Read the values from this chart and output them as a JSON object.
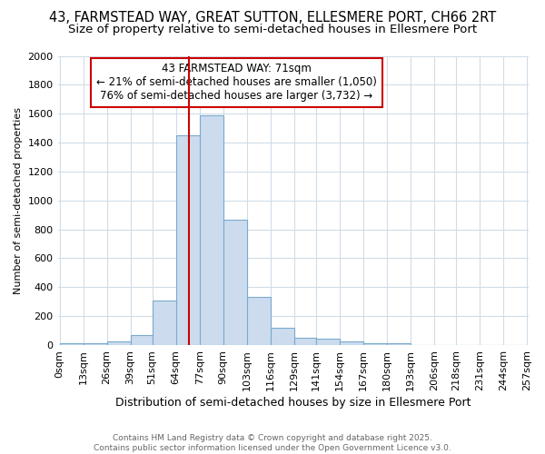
{
  "title1": "43, FARMSTEAD WAY, GREAT SUTTON, ELLESMERE PORT, CH66 2RT",
  "title2": "Size of property relative to semi-detached houses in Ellesmere Port",
  "xlabel": "Distribution of semi-detached houses by size in Ellesmere Port",
  "ylabel": "Number of semi-detached properties",
  "footnote": "Contains HM Land Registry data © Crown copyright and database right 2025.\nContains public sector information licensed under the Open Government Licence v3.0.",
  "bin_edges": [
    0,
    13,
    26,
    39,
    51,
    64,
    77,
    90,
    103,
    116,
    129,
    141,
    154,
    167,
    180,
    193,
    206,
    218,
    231,
    244,
    257
  ],
  "bin_labels": [
    "0sqm",
    "13sqm",
    "26sqm",
    "39sqm",
    "51sqm",
    "64sqm",
    "77sqm",
    "90sqm",
    "103sqm",
    "116sqm",
    "129sqm",
    "141sqm",
    "154sqm",
    "167sqm",
    "180sqm",
    "193sqm",
    "206sqm",
    "218sqm",
    "231sqm",
    "244sqm",
    "257sqm"
  ],
  "counts": [
    10,
    10,
    25,
    70,
    310,
    1450,
    1590,
    865,
    335,
    120,
    50,
    45,
    25,
    15,
    10,
    3,
    2,
    1,
    1,
    0
  ],
  "bar_color": "#ccdcee",
  "bar_edgecolor": "#7aaace",
  "property_size": 71,
  "vline_color": "#cc0000",
  "annotation_title": "43 FARMSTEAD WAY: 71sqm",
  "annotation_line2": "← 21% of semi-detached houses are smaller (1,050)",
  "annotation_line3": "76% of semi-detached houses are larger (3,732) →",
  "annotation_box_color": "#cc0000",
  "ylim": [
    0,
    2000
  ],
  "yticks": [
    0,
    200,
    400,
    600,
    800,
    1000,
    1200,
    1400,
    1600,
    1800,
    2000
  ],
  "bg_color": "#ffffff",
  "grid_color": "#d0dce8",
  "title1_fontsize": 10.5,
  "title2_fontsize": 9.5,
  "ann_fontsize": 8.5
}
